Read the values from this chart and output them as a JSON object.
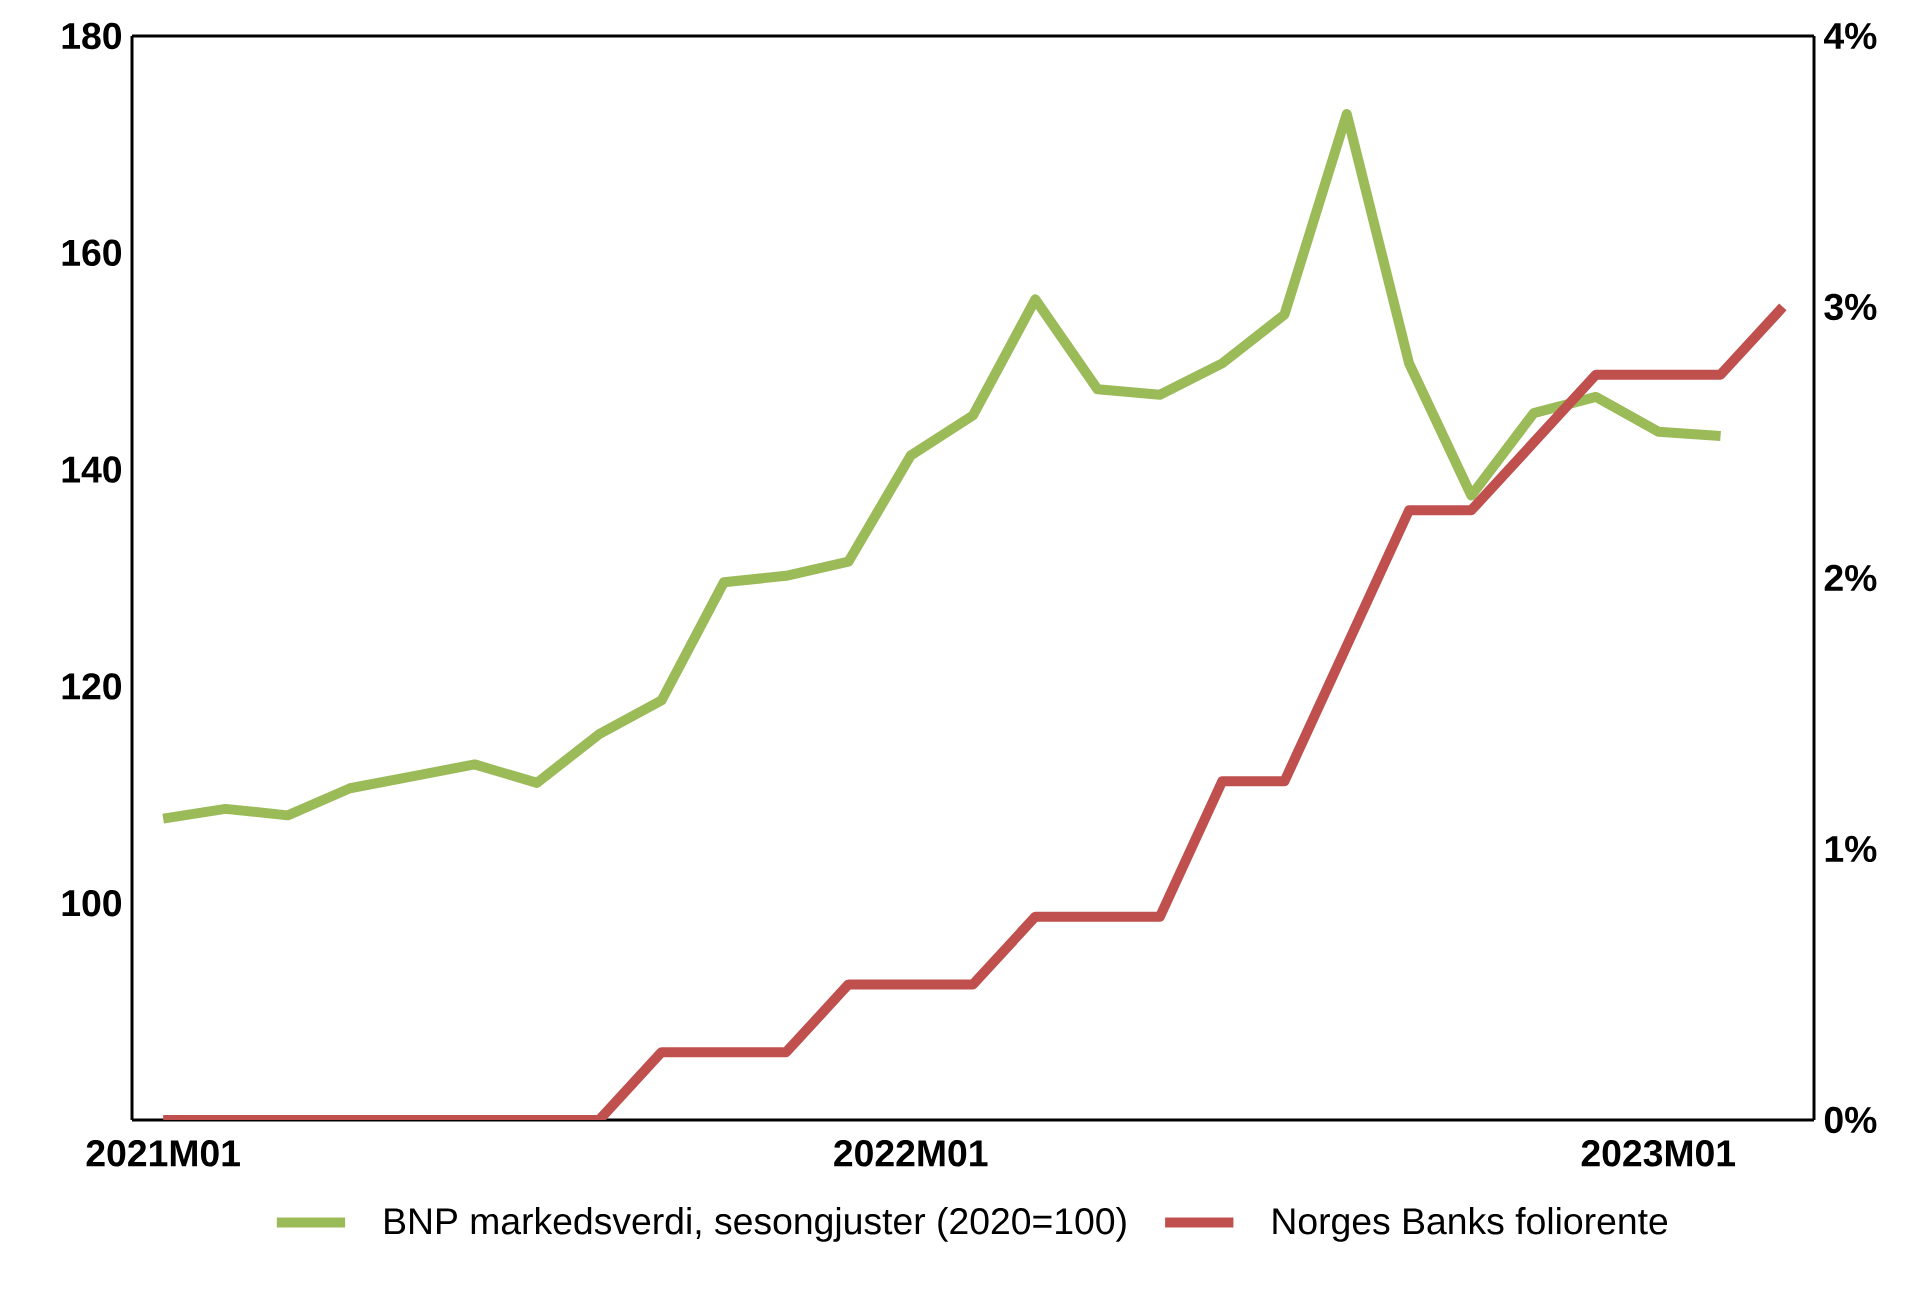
{
  "chart_data": {
    "type": "line",
    "categories": [
      "2021M01",
      null,
      null,
      null,
      null,
      null,
      null,
      null,
      null,
      null,
      null,
      null,
      "2022M01",
      null,
      null,
      null,
      null,
      null,
      null,
      null,
      null,
      null,
      null,
      null,
      "2023M01",
      null,
      null
    ],
    "series": [
      {
        "name": "BNP markedsverdi, sesongjuster (2020=100)",
        "color": "#9bbb59",
        "values": [
          107.8,
          108.7,
          108.1,
          110.6,
          111.7,
          112.8,
          111.1,
          115.6,
          118.7,
          129.6,
          130.2,
          131.5,
          141.3,
          145.0,
          155.7,
          147.4,
          146.9,
          149.8,
          154.3,
          172.8,
          149.8,
          137.6,
          145.2,
          146.7,
          143.5,
          143.1,
          null
        ]
      },
      {
        "name": "Norges Banks foliorente",
        "color": "#c0504d",
        "axis": "y2",
        "values": [
          0,
          0,
          0,
          0,
          0,
          0,
          0,
          0,
          0.25,
          0.25,
          0.25,
          0.5,
          0.5,
          0.5,
          0.75,
          0.75,
          0.75,
          1.25,
          1.25,
          1.75,
          2.25,
          2.25,
          2.5,
          2.75,
          2.75,
          2.75,
          3.0
        ]
      }
    ],
    "ylim": [
      80,
      180
    ],
    "yticks": [
      100,
      120,
      140,
      160,
      180
    ],
    "y2lim": [
      0,
      4
    ],
    "y2ticks": [
      {
        "value": 0,
        "label": "0%"
      },
      {
        "value": 1,
        "label": "1%"
      },
      {
        "value": 2,
        "label": "2%"
      },
      {
        "value": 3,
        "label": "3%"
      },
      {
        "value": 4,
        "label": "4%"
      }
    ],
    "legend": "bottom",
    "grid": false,
    "marker": "none",
    "line_style": "solid"
  }
}
